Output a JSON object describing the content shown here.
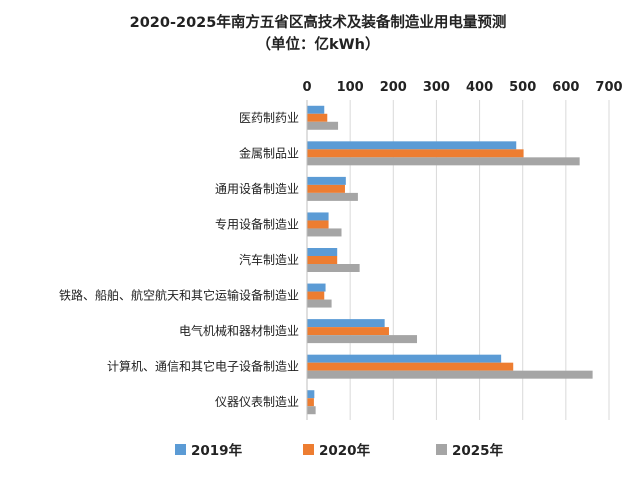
{
  "chart_data": {
    "type": "bar",
    "orientation": "horizontal",
    "title": "2020-2025年南方五省区高技术及装备制造业用电量预测",
    "subtitle": "（单位：亿kWh）",
    "categories": [
      "医药制药业",
      "金属制品业",
      "通用设备制造业",
      "专用设备制造业",
      "汽车制造业",
      "铁路、船舶、航空航天和其它运输设备制造业",
      "电气机械和器材制造业",
      "计算机、通信和其它电子设备制造业",
      "仪器仪表制造业"
    ],
    "series": [
      {
        "name": "2019年",
        "color": "#5b9bd5",
        "values": [
          40,
          485,
          90,
          50,
          70,
          43,
          180,
          450,
          17
        ]
      },
      {
        "name": "2020年",
        "color": "#ed7d31",
        "values": [
          47,
          502,
          88,
          50,
          70,
          40,
          190,
          478,
          16
        ]
      },
      {
        "name": "2025年",
        "color": "#a5a5a5",
        "values": [
          72,
          632,
          118,
          80,
          122,
          57,
          255,
          662,
          20
        ]
      }
    ],
    "xlim": [
      0,
      700
    ],
    "xticks": [
      "0",
      "100",
      "200",
      "300",
      "400",
      "500",
      "600",
      "700"
    ],
    "x_axis_position": "top",
    "grid": true,
    "legend_position": "bottom"
  }
}
